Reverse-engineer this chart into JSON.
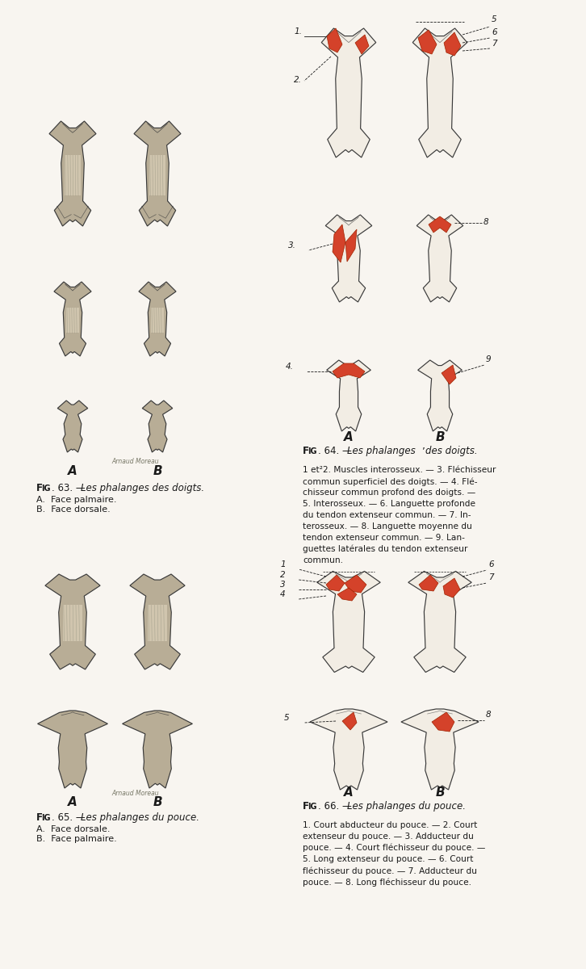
{
  "background_color": "#f8f5f0",
  "fig63_title_prefix": "Fig. 63.",
  "fig63_title_rest": " — Les phalanges des doigts.",
  "fig63_sub": "A.  Face palmaire.\nB.  Face dorsale.",
  "fig64_title_prefix": "Fig. 64.",
  "fig64_title_rest": " — Les phalanges des doigts.",
  "fig64_body": "1 et²2. Muscles interosseux. — 3. Fléchisseur\ncommun superficiel des doigts. — 4. Flé-\nchisseur commun profond des doigts. —\n5. Interosseux. — 6. Languette profonde\ndu tendon extenseur commun. — 7. In-\nterosseux. — 8. Languette moyenne du\ntendon extenseur commun. — 9. Lan-\nguettes latérales du tendon extenseur\ncommun.",
  "fig65_title_prefix": "Fig. 65.",
  "fig65_title_rest": " — Les phalanges du pouce.",
  "fig65_sub": "A.  Face dorsale.\nB.  Face palmaire.",
  "fig66_title_prefix": "Fig. 66.",
  "fig66_title_rest": " — Les phalanges du pouce.",
  "fig66_body": "1. Court abducteur du pouce. — 2. Court\nextenseur du pouce. — 3. Adducteur du\npouce. — 4. Court fléchisseur du pouce. —\n5. Long extenseur du pouce. — 6. Court\nfléchisseur du pouce. — 7. Adducteur du\npouce. — 8. Long fléchisseur du pouce.",
  "orange": "#d4422a",
  "dark": "#1a1a1a",
  "bone_fill_dark": "#b8ad96",
  "bone_line_dark": "#3a3a3a",
  "bone_fill_light": "#f2ede4",
  "bone_line_light": "#3a3a3a",
  "page_bg": "#f8f5f0"
}
